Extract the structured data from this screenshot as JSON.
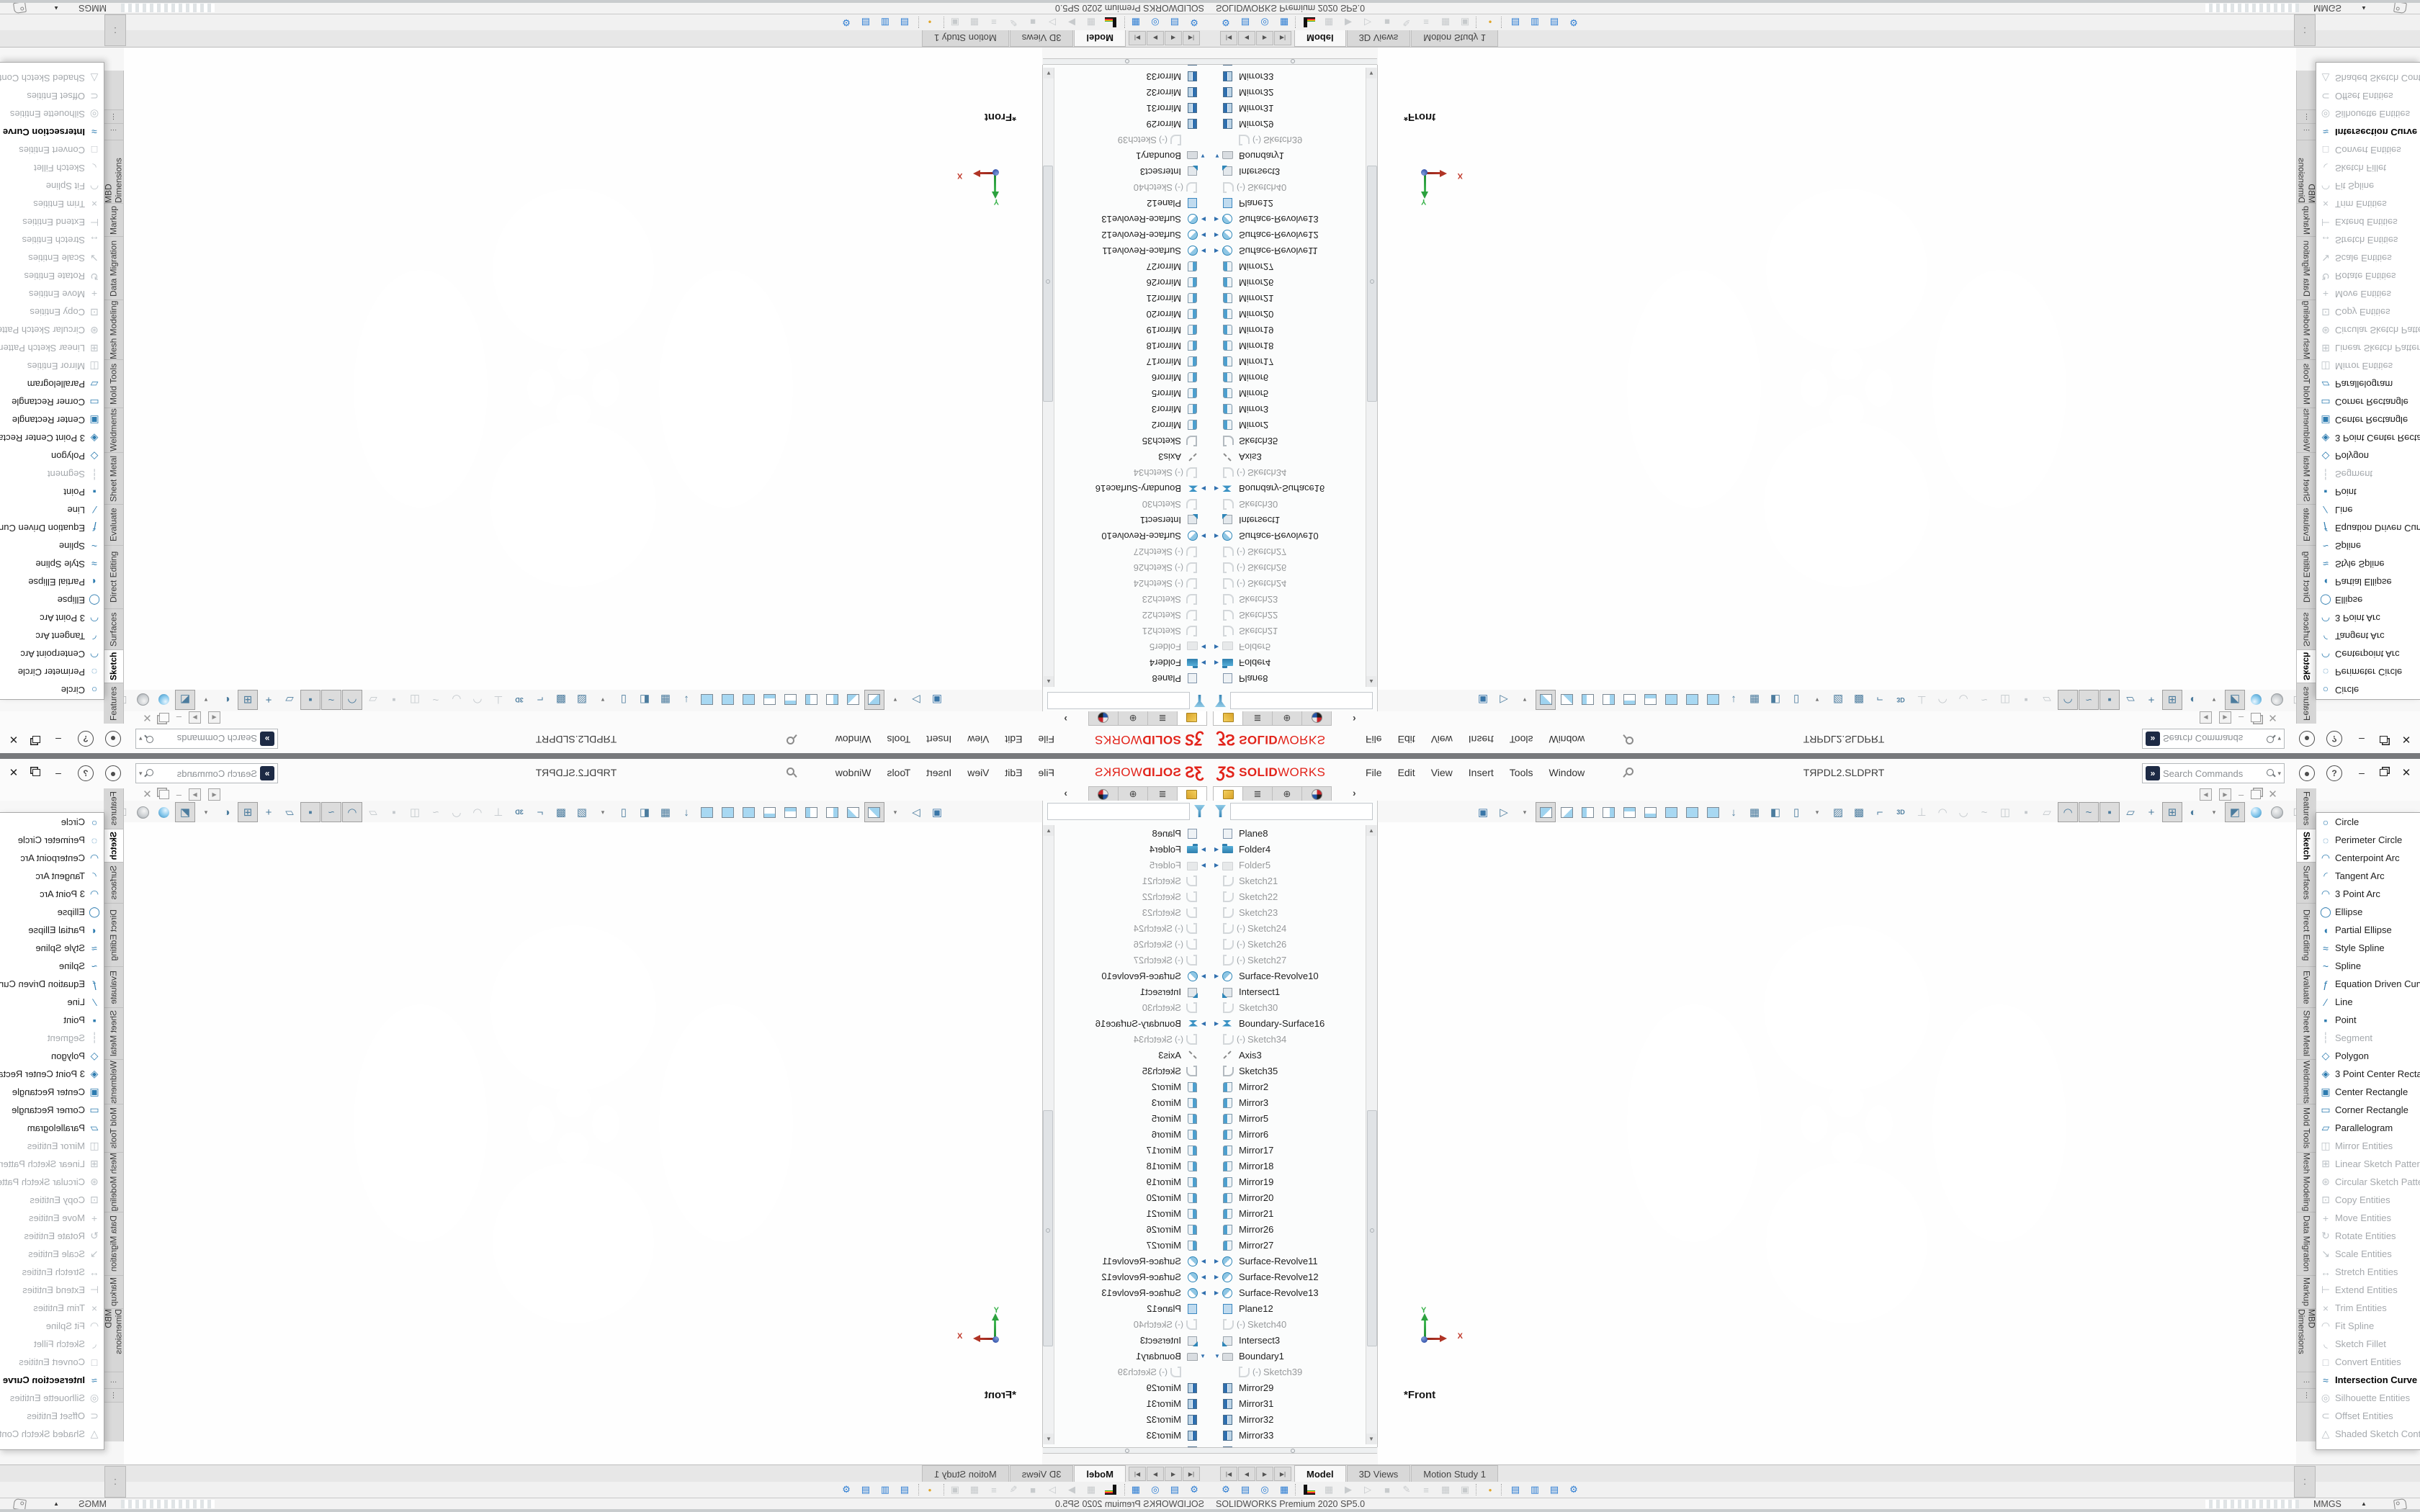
{
  "window": {
    "logo": {
      "mark": "ƷS",
      "word_bold": "SOLID",
      "word_light": "WORKS"
    },
    "menus": [
      "File",
      "Edit",
      "View",
      "Insert",
      "Tools",
      "Window"
    ],
    "title": "TЯPDL2.SLDPRT",
    "search": {
      "placeholder": "Search Commands"
    },
    "controls": {
      "minimize": "–",
      "close": "✕"
    }
  },
  "feature_manager": {
    "tabs": [
      {
        "icon": "part",
        "name": "featuremanager-design-tree-tab",
        "active": true
      },
      {
        "icon": "hier",
        "name": "propertymanager-tab"
      },
      {
        "icon": "target",
        "name": "configurationmanager-tab"
      },
      {
        "icon": "display",
        "name": "displaymanager-tab"
      }
    ],
    "expand_chevron": "›",
    "filter": {
      "value": ""
    },
    "tree": [
      {
        "icon": "plane",
        "label": "Plane8"
      },
      {
        "icon": "folder",
        "arrow": "right",
        "label": "Folder4"
      },
      {
        "icon": "folderg",
        "arrow": "right",
        "label": "Folder5",
        "dim": true
      },
      {
        "icon": "sketch",
        "label": "Sketch21",
        "dim": true
      },
      {
        "icon": "sketch",
        "label": "Sketch22",
        "dim": true
      },
      {
        "icon": "sketch",
        "label": "Sketch23",
        "dim": true
      },
      {
        "icon": "sketch",
        "prefix": "(-)",
        "label": "Sketch24",
        "dim": true
      },
      {
        "icon": "sketch",
        "prefix": "(-)",
        "label": "Sketch26",
        "dim": true
      },
      {
        "icon": "sketch",
        "prefix": "(-)",
        "label": "Sketch27",
        "dim": true
      },
      {
        "icon": "revolve",
        "arrow": "right",
        "label": "Surface-Revolve10"
      },
      {
        "icon": "intersect",
        "label": "Intersect1"
      },
      {
        "icon": "sketch",
        "label": "Sketch30",
        "dim": true
      },
      {
        "icon": "bsurf",
        "arrow": "right",
        "label": "Boundary-Surface16"
      },
      {
        "icon": "sketch",
        "prefix": "(-)",
        "label": "Sketch34",
        "dim": true
      },
      {
        "icon": "axis",
        "label": "Axis3"
      },
      {
        "icon": "sketch",
        "label": "Sketch35"
      },
      {
        "icon": "mirror",
        "label": "Mirror2"
      },
      {
        "icon": "mirror",
        "label": "Mirror3"
      },
      {
        "icon": "mirror",
        "label": "Mirror5"
      },
      {
        "icon": "mirror",
        "label": "Mirror6"
      },
      {
        "icon": "mirror",
        "label": "Mirror17"
      },
      {
        "icon": "mirror",
        "label": "Mirror18"
      },
      {
        "icon": "mirror",
        "label": "Mirror19"
      },
      {
        "icon": "mirror",
        "label": "Mirror20"
      },
      {
        "icon": "mirror",
        "label": "Mirror21"
      },
      {
        "icon": "mirror",
        "label": "Mirror26"
      },
      {
        "icon": "mirror",
        "label": "Mirror27"
      },
      {
        "icon": "revolve",
        "arrow": "right",
        "label": "Surface-Revolve11"
      },
      {
        "icon": "revolve",
        "arrow": "right",
        "label": "Surface-Revolve12"
      },
      {
        "icon": "revolve",
        "arrow": "right",
        "label": "Surface-Revolve13"
      },
      {
        "icon": "plane2",
        "label": "Plane12"
      },
      {
        "icon": "sketch",
        "prefix": "(-)",
        "label": "Sketch40",
        "dim": true
      },
      {
        "icon": "intersect",
        "label": "Intersect3"
      },
      {
        "icon": "boundary",
        "arrow": "down",
        "label": "Boundary1"
      },
      {
        "icon": "sketch",
        "prefix": "(-)",
        "label": "Sketch39",
        "dim": true,
        "indent": true
      },
      {
        "icon": "mirror2",
        "label": "Mirror29"
      },
      {
        "icon": "mirror2",
        "label": "Mirror31"
      },
      {
        "icon": "mirror2",
        "label": "Mirror32"
      },
      {
        "icon": "mirror2",
        "label": "Mirror33"
      },
      {
        "icon": "mirror2",
        "label": "",
        "partial": true
      }
    ]
  },
  "headsup_toolbar": {
    "icons": [
      {
        "icon": "save",
        "name": "save"
      },
      {
        "icon": "macro",
        "name": "run-macro"
      },
      {
        "icon": "caret",
        "name": "dropdown"
      },
      {
        "icon": "v-front",
        "name": "view-front",
        "active": true
      },
      {
        "icon": "v-back",
        "name": "view-back"
      },
      {
        "icon": "v-left",
        "name": "view-left"
      },
      {
        "icon": "v-right",
        "name": "view-right"
      },
      {
        "icon": "v-top",
        "name": "view-top"
      },
      {
        "icon": "v-bottom",
        "name": "view-bottom"
      },
      {
        "icon": "v-iso",
        "name": "view-isometric"
      },
      {
        "icon": "v-dim",
        "name": "view-dimetric"
      },
      {
        "icon": "v-tri",
        "name": "view-trimetric"
      },
      {
        "icon": "normal-to",
        "name": "normal-to"
      },
      {
        "icon": "viewport-layout",
        "name": "viewport-layout"
      },
      {
        "icon": "section",
        "name": "section-view"
      },
      {
        "icon": "display-pane",
        "name": "display-pane"
      },
      {
        "icon": "caret",
        "name": "dropdown"
      },
      {
        "icon": "zebra",
        "name": "zebra-stripes"
      },
      {
        "icon": "curvature",
        "name": "curvature"
      },
      {
        "icon": "corner",
        "name": "draft-analysis"
      },
      {
        "icon": "sketch3d",
        "name": "3d-sketch"
      },
      {
        "icon": "perp",
        "name": "sketch-relations",
        "disabled": true
      },
      {
        "icon": "arc",
        "name": "arc-tool",
        "disabled": true
      },
      {
        "icon": "arc2",
        "name": "arc-tool-2",
        "disabled": true
      },
      {
        "icon": "spline",
        "name": "spline-tool",
        "disabled": true
      },
      {
        "icon": "mirror-e",
        "name": "mirror-tool",
        "disabled": true
      },
      {
        "icon": "point",
        "name": "point-tool",
        "disabled": true
      },
      {
        "icon": "plane-e",
        "name": "plane-tool",
        "disabled": true
      },
      {
        "icon": "eye-sketch",
        "name": "view-sketches",
        "hl": true
      },
      {
        "icon": "eye-curve",
        "name": "view-curves",
        "hl": true
      },
      {
        "icon": "eye-point",
        "name": "view-points",
        "hl": true
      },
      {
        "icon": "eye-plane",
        "name": "view-planes"
      },
      {
        "icon": "eye-axis",
        "name": "view-axes"
      },
      {
        "icon": "grid",
        "name": "view-grid",
        "hl": true
      },
      {
        "icon": "shadow",
        "name": "shadows"
      },
      {
        "icon": "caret",
        "name": "dropdown"
      },
      {
        "icon": "rtt",
        "name": "realview-graphics",
        "hl": true
      },
      {
        "icon": "ball-blue",
        "name": "apply-scene"
      },
      {
        "icon": "ball-gray",
        "name": "view-settings"
      },
      {
        "icon": "cube-gray",
        "name": "edit-appearance"
      }
    ]
  },
  "viewport": {
    "view_label": "*Front",
    "triad": {
      "x": "X",
      "y": "Y"
    }
  },
  "command_tabs": {
    "items": [
      {
        "label": "Features"
      },
      {
        "label": "Sketch",
        "active": true
      },
      {
        "label": "Surfaces"
      },
      {
        "label": "Direct Editing"
      },
      {
        "label": "Evaluate"
      },
      {
        "label": "Sheet Metal"
      },
      {
        "label": "Weldments"
      },
      {
        "label": "Mold Tools"
      },
      {
        "label": "Mesh Modeling"
      },
      {
        "label": "Data Migration"
      },
      {
        "label": "Markup"
      },
      {
        "label": "MBD Dimensions"
      },
      {
        "label": "…",
        "overflow": true
      },
      {
        "label": "⋮",
        "overflow": true
      }
    ]
  },
  "sketch_menu": {
    "items": [
      {
        "icon": "circle",
        "label": "Circle"
      },
      {
        "icon": "perimeter-circle",
        "label": "Perimeter Circle"
      },
      {
        "icon": "centerpoint-arc",
        "label": "Centerpoint Arc"
      },
      {
        "icon": "tangent-arc",
        "label": "Tangent Arc"
      },
      {
        "icon": "three-point-arc",
        "label": "3 Point Arc"
      },
      {
        "icon": "ellipse",
        "label": "Ellipse"
      },
      {
        "icon": "partial-ellipse",
        "label": "Partial Ellipse"
      },
      {
        "icon": "style-spline",
        "label": "Style Spline"
      },
      {
        "icon": "spline",
        "label": "Spline"
      },
      {
        "icon": "equation-curve",
        "label": "Equation Driven Curve"
      },
      {
        "icon": "line",
        "label": "Line"
      },
      {
        "icon": "point",
        "label": "Point"
      },
      {
        "icon": "segment",
        "label": "Segment",
        "disabled": true
      },
      {
        "icon": "polygon",
        "label": "Polygon"
      },
      {
        "icon": "three-point-center-rect",
        "label": "3 Point Center Recta..."
      },
      {
        "icon": "center-rect",
        "label": "Center Rectangle"
      },
      {
        "icon": "corner-rect",
        "label": "Corner Rectangle"
      },
      {
        "icon": "parallelogram",
        "label": "Parallelogram"
      },
      {
        "icon": "mirror-entities",
        "label": "Mirror Entities",
        "disabled": true
      },
      {
        "icon": "linear-pattern",
        "label": "Linear Sketch Pattern",
        "disabled": true
      },
      {
        "icon": "circular-pattern",
        "label": "Circular Sketch Pattern",
        "disabled": true
      },
      {
        "icon": "copy-entities",
        "label": "Copy Entities",
        "disabled": true
      },
      {
        "icon": "move-entities",
        "label": "Move Entities",
        "disabled": true
      },
      {
        "icon": "rotate-entities",
        "label": "Rotate Entities",
        "disabled": true
      },
      {
        "icon": "scale-entities",
        "label": "Scale Entities",
        "disabled": true
      },
      {
        "icon": "stretch-entities",
        "label": "Stretch Entities",
        "disabled": true
      },
      {
        "icon": "extend-entities",
        "label": "Extend Entities",
        "disabled": true
      },
      {
        "icon": "trim-entities",
        "label": "Trim Entities",
        "disabled": true
      },
      {
        "icon": "fit-spline",
        "label": "Fit Spline",
        "disabled": true
      },
      {
        "icon": "sketch-fillet",
        "label": "Sketch Fillet",
        "disabled": true
      },
      {
        "icon": "convert-entities",
        "label": "Convert Entities",
        "disabled": true
      },
      {
        "icon": "intersection-curve",
        "label": "Intersection Curve",
        "emphasis": true
      },
      {
        "icon": "silhouette-entities",
        "label": "Silhouette Entities",
        "disabled": true
      },
      {
        "icon": "offset-entities",
        "label": "Offset Entities",
        "disabled": true
      },
      {
        "icon": "shaded-contour",
        "label": "Shaded Sketch Cont...",
        "disabled": true
      }
    ]
  },
  "doc_tabs": {
    "scroll_buttons": [
      "|◀",
      "◀",
      "▶",
      "▶|"
    ],
    "tabs": [
      {
        "label": "Model",
        "active": true
      },
      {
        "label": "3D Views"
      },
      {
        "label": "Motion Study 1"
      }
    ]
  },
  "motion_toolbar": {
    "icons": [
      {
        "icon": "gear",
        "name": "motion-settings",
        "blue": true
      },
      {
        "icon": "wizard",
        "name": "animation-wizard",
        "blue": true
      },
      {
        "icon": "motion",
        "name": "motion-manager",
        "blue": true
      },
      {
        "icon": "film",
        "name": "save-animation",
        "blue": true
      },
      {
        "icon": "sep"
      },
      {
        "icon": "chart",
        "name": "results-chart",
        "colored": true
      },
      {
        "icon": "calc",
        "name": "calculate",
        "disabled": true
      },
      {
        "icon": "playstart",
        "name": "play-from-start",
        "disabled": true
      },
      {
        "icon": "play",
        "name": "play",
        "disabled": true
      },
      {
        "icon": "stop",
        "name": "stop",
        "disabled": true
      },
      {
        "icon": "pencil",
        "name": "edit-key",
        "disabled": true
      },
      {
        "icon": "props",
        "name": "key-properties",
        "disabled": true
      },
      {
        "icon": "table",
        "name": "timeline-grid",
        "disabled": true
      },
      {
        "icon": "layers",
        "name": "filters",
        "disabled": true
      },
      {
        "icon": "sep"
      },
      {
        "icon": "key",
        "name": "autokey",
        "colored": true
      },
      {
        "icon": "sep"
      },
      {
        "icon": "results",
        "name": "results-and-plots",
        "blue": true
      },
      {
        "icon": "chart2",
        "name": "motion-study-properties",
        "blue": true
      },
      {
        "icon": "folder",
        "name": "simulation-setup",
        "blue": true
      },
      {
        "icon": "gear2",
        "name": "study-settings",
        "blue": true
      }
    ],
    "grip": "⁚"
  },
  "status_bar": {
    "brand": "SOLIDWORKS Premium 2020 SP5.0",
    "units": "MMGS",
    "units_caret": "▲"
  }
}
